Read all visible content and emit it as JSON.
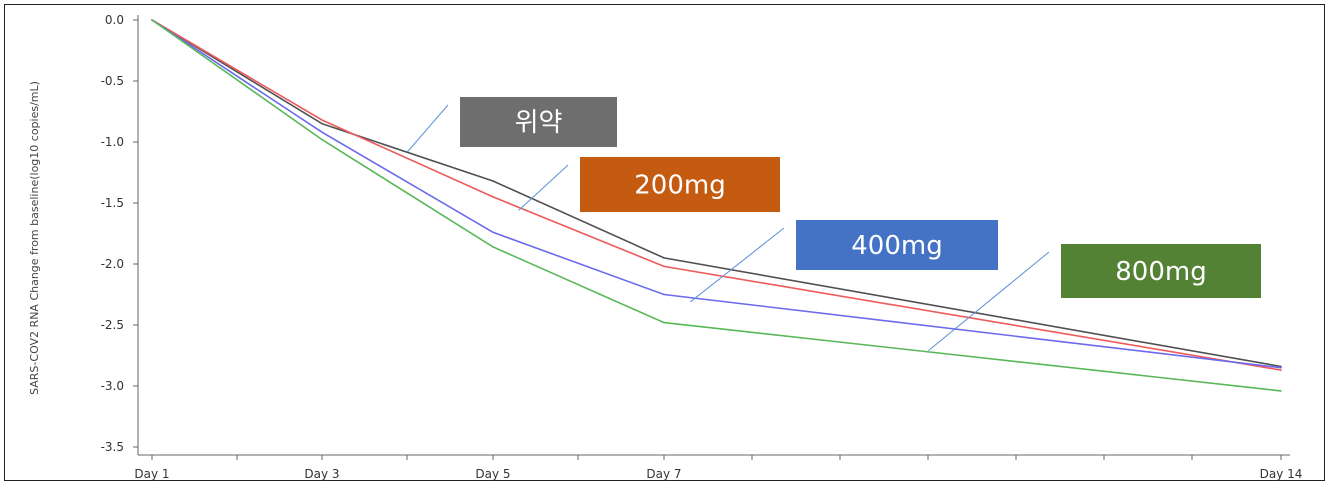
{
  "chart_data": {
    "type": "line",
    "ylabel": "SARS-COV2 RNA Change from baseline(log10 copies/mL)",
    "xlabel": "",
    "title": "",
    "x": [
      "Day 1",
      "Day 3",
      "Day 5",
      "Day 7",
      "Day 14"
    ],
    "x_numeric": [
      1,
      3,
      5,
      7,
      14
    ],
    "x_tick_labels": [
      "Day 1",
      "Day 3",
      "Day 5",
      "Day 7",
      "Day 14"
    ],
    "y_ticks": [
      0.0,
      -0.5,
      -1.0,
      -1.5,
      -2.0,
      -2.5,
      -3.0,
      -3.5
    ],
    "y_tick_labels": [
      "0.0",
      "-0.5",
      "-1.0",
      "-1.5",
      "-2.0",
      "-2.5",
      "-3.0",
      "-3.5"
    ],
    "ylim": [
      -3.6,
      0.05
    ],
    "xlim": [
      1,
      14
    ],
    "grid": false,
    "series": [
      {
        "name": "위약",
        "color": "#505050",
        "values": [
          0.0,
          -0.85,
          -1.32,
          -1.95,
          -2.84
        ]
      },
      {
        "name": "200mg",
        "color": "#ee5a5a",
        "values": [
          0.0,
          -0.82,
          -1.45,
          -2.02,
          -2.87
        ]
      },
      {
        "name": "400mg",
        "color": "#6a6aee",
        "values": [
          0.0,
          -0.92,
          -1.74,
          -2.25,
          -2.85
        ]
      },
      {
        "name": "800mg",
        "color": "#5ab85a",
        "values": [
          0.0,
          -0.98,
          -1.86,
          -2.48,
          -3.04
        ]
      }
    ],
    "callouts": [
      {
        "label": "위약",
        "series": 0,
        "box_color": "#6e6e6e",
        "anchor_x": 4.0,
        "anchor_y": -1.08
      },
      {
        "label": "200mg",
        "series": 1,
        "box_color": "#c55a11",
        "anchor_x": 5.3,
        "anchor_y": -1.56
      },
      {
        "label": "400mg",
        "series": 2,
        "box_color": "#4472c4",
        "anchor_x": 7.3,
        "anchor_y": -2.31
      },
      {
        "label": "800mg",
        "series": 3,
        "box_color": "#548235",
        "anchor_x": 10.0,
        "anchor_y": -2.71
      }
    ]
  }
}
